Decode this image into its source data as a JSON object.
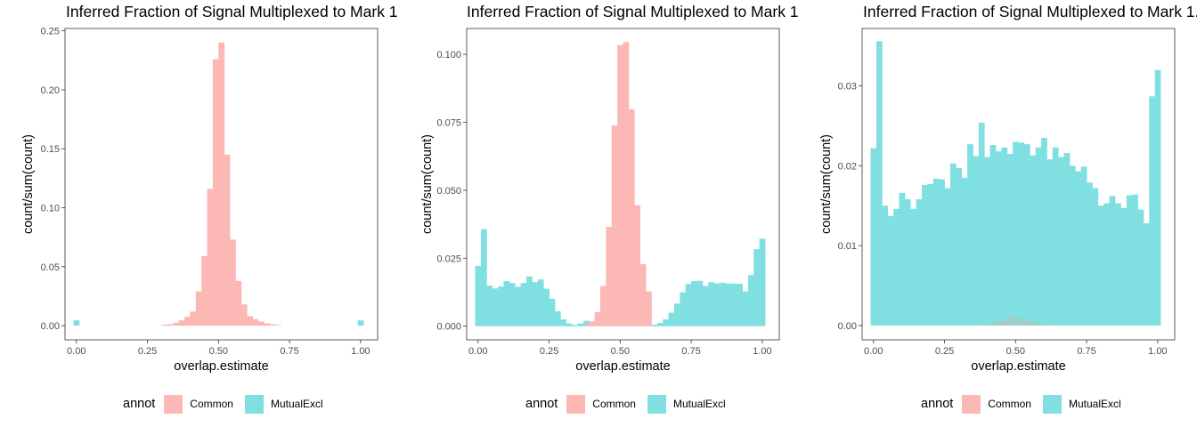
{
  "colors": {
    "common": "#fbb8b4",
    "mutual": "#80dfe0",
    "overlap": "#9fcdc8",
    "frame": "#333333",
    "tick_text": "#4d4d4d"
  },
  "legend": {
    "title": "annot",
    "items": [
      "Common",
      "MutualExcl"
    ]
  },
  "chart_data": [
    {
      "type": "bar",
      "title": "Inferred Fraction of Signal Multiplexed to Mark 1.",
      "xlabel": "overlap.estimate",
      "ylabel": "count/sum(count)",
      "xlim": [
        -0.04,
        1.06
      ],
      "ylim": [
        -0.012,
        0.252
      ],
      "x_ticks": [
        0,
        0.25,
        0.5,
        0.75,
        1
      ],
      "x_tick_labels": [
        "0.00",
        "0.25",
        "0.50",
        "0.75",
        "1.00"
      ],
      "y_ticks": [
        0,
        0.05,
        0.1,
        0.15,
        0.2,
        0.25
      ],
      "y_tick_labels": [
        "0.00",
        "0.05",
        "0.10",
        "0.15",
        "0.20",
        "0.25"
      ],
      "bin_width": 0.02,
      "series": [
        {
          "name": "Common",
          "bins": [
            0.31,
            0.33,
            0.35,
            0.37,
            0.39,
            0.41,
            0.43,
            0.45,
            0.47,
            0.49,
            0.51,
            0.53,
            0.55,
            0.57,
            0.59,
            0.61,
            0.63,
            0.65,
            0.67,
            0.69,
            0.71
          ],
          "values": [
            0.0008,
            0.0012,
            0.0025,
            0.0045,
            0.0075,
            0.012,
            0.029,
            0.059,
            0.116,
            0.226,
            0.24,
            0.145,
            0.073,
            0.038,
            0.018,
            0.008,
            0.0055,
            0.0035,
            0.002,
            0.0012,
            0.0006
          ]
        },
        {
          "name": "MutualExcl",
          "bins": [
            0.0,
            1.0
          ],
          "values": [
            0.0045,
            0.0045
          ]
        }
      ]
    },
    {
      "type": "bar",
      "title": "Inferred Fraction of Signal Multiplexed to Mark 1.",
      "xlabel": "overlap.estimate",
      "ylabel": "count/sum(count)",
      "xlim": [
        -0.04,
        1.06
      ],
      "ylim": [
        -0.005,
        0.1095
      ],
      "x_ticks": [
        0,
        0.25,
        0.5,
        0.75,
        1
      ],
      "x_tick_labels": [
        "0.00",
        "0.25",
        "0.50",
        "0.75",
        "1.00"
      ],
      "y_ticks": [
        0,
        0.025,
        0.05,
        0.075,
        0.1
      ],
      "y_tick_labels": [
        "0.000",
        "0.025",
        "0.050",
        "0.075",
        "0.100"
      ],
      "bin_width": 0.02,
      "series": [
        {
          "name": "MutualExcl",
          "bins": [
            0.0,
            0.02,
            0.04,
            0.06,
            0.08,
            0.1,
            0.12,
            0.14,
            0.16,
            0.18,
            0.2,
            0.22,
            0.24,
            0.26,
            0.28,
            0.3,
            0.32,
            0.34,
            0.36,
            0.38,
            0.62,
            0.64,
            0.66,
            0.68,
            0.7,
            0.72,
            0.74,
            0.76,
            0.78,
            0.8,
            0.82,
            0.84,
            0.86,
            0.88,
            0.9,
            0.92,
            0.94,
            0.96,
            0.98,
            1.0
          ],
          "values": [
            0.0222,
            0.0357,
            0.0149,
            0.0139,
            0.0146,
            0.0166,
            0.0159,
            0.0145,
            0.0159,
            0.0183,
            0.0162,
            0.0172,
            0.0138,
            0.0101,
            0.0055,
            0.0025,
            0.001,
            0.0005,
            0.001,
            0.002,
            0.0005,
            0.0012,
            0.0025,
            0.005,
            0.0083,
            0.0125,
            0.0155,
            0.0166,
            0.0167,
            0.0148,
            0.0162,
            0.0158,
            0.016,
            0.0157,
            0.0157,
            0.0156,
            0.0128,
            0.0188,
            0.0283,
            0.0322
          ]
        },
        {
          "name": "Common",
          "bins": [
            0.38,
            0.4,
            0.42,
            0.44,
            0.46,
            0.48,
            0.5,
            0.52,
            0.54,
            0.56,
            0.58,
            0.6
          ],
          "values": [
            0.0006,
            0.0018,
            0.0052,
            0.0148,
            0.0365,
            0.0738,
            0.1034,
            0.1045,
            0.0798,
            0.0445,
            0.0228,
            0.0128
          ]
        }
      ]
    },
    {
      "type": "bar",
      "title": "Inferred Fraction of Signal Multiplexed to Mark 1.",
      "xlabel": "overlap.estimate",
      "ylabel": "count/sum(count)",
      "xlim": [
        -0.04,
        1.06
      ],
      "ylim": [
        -0.0018,
        0.0372
      ],
      "x_ticks": [
        0,
        0.25,
        0.5,
        0.75,
        1
      ],
      "x_tick_labels": [
        "0.00",
        "0.25",
        "0.50",
        "0.75",
        "1.00"
      ],
      "y_ticks": [
        0,
        0.01,
        0.02,
        0.03
      ],
      "y_tick_labels": [
        "0.00",
        "0.01",
        "0.02",
        "0.03"
      ],
      "bin_width": 0.02,
      "series": [
        {
          "name": "MutualExcl",
          "bins": [
            0.0,
            0.02,
            0.04,
            0.06,
            0.08,
            0.1,
            0.12,
            0.14,
            0.16,
            0.18,
            0.2,
            0.22,
            0.24,
            0.26,
            0.28,
            0.3,
            0.32,
            0.34,
            0.36,
            0.38,
            0.4,
            0.42,
            0.44,
            0.46,
            0.48,
            0.5,
            0.52,
            0.54,
            0.56,
            0.58,
            0.6,
            0.62,
            0.64,
            0.66,
            0.68,
            0.7,
            0.72,
            0.74,
            0.76,
            0.78,
            0.8,
            0.82,
            0.84,
            0.86,
            0.88,
            0.9,
            0.92,
            0.94,
            0.96,
            0.98,
            1.0
          ],
          "values": [
            0.0222,
            0.0356,
            0.015,
            0.0137,
            0.0146,
            0.0166,
            0.0158,
            0.0146,
            0.0158,
            0.0176,
            0.0177,
            0.0184,
            0.0183,
            0.0172,
            0.0203,
            0.0197,
            0.0185,
            0.0227,
            0.0212,
            0.0254,
            0.0211,
            0.0226,
            0.0218,
            0.0223,
            0.0215,
            0.023,
            0.0229,
            0.0227,
            0.0213,
            0.0223,
            0.0235,
            0.0208,
            0.0223,
            0.0211,
            0.0216,
            0.02,
            0.0193,
            0.0199,
            0.0179,
            0.0172,
            0.015,
            0.0153,
            0.0162,
            0.0153,
            0.0147,
            0.0163,
            0.0164,
            0.0145,
            0.0128,
            0.0287,
            0.032
          ]
        },
        {
          "name": "Common",
          "bins": [
            0.4,
            0.42,
            0.44,
            0.46,
            0.48,
            0.5,
            0.52,
            0.54,
            0.56,
            0.58,
            0.6
          ],
          "values": [
            0.0001,
            0.0003,
            0.0005,
            0.0008,
            0.0011,
            0.0011,
            0.0008,
            0.0008,
            0.0005,
            0.0003,
            0.0001
          ]
        }
      ]
    }
  ]
}
